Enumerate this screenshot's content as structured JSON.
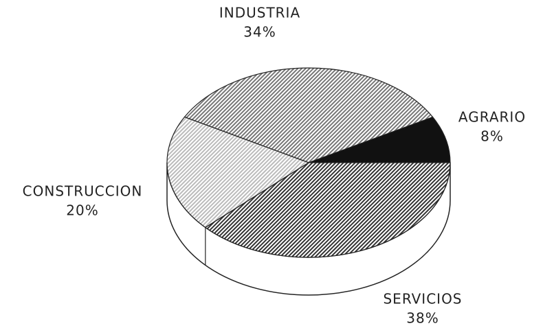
{
  "chart_data": {
    "type": "pie",
    "categories": [
      "AGRARIO",
      "INDUSTRIA",
      "CONSTRUCCION",
      "SERVICIOS"
    ],
    "values": [
      8,
      34,
      20,
      38
    ],
    "value_labels": [
      "8%",
      "34%",
      "20%",
      "38%"
    ],
    "colors": [
      "#111111",
      "#777777",
      "#bbbbbb",
      "#333333"
    ]
  }
}
